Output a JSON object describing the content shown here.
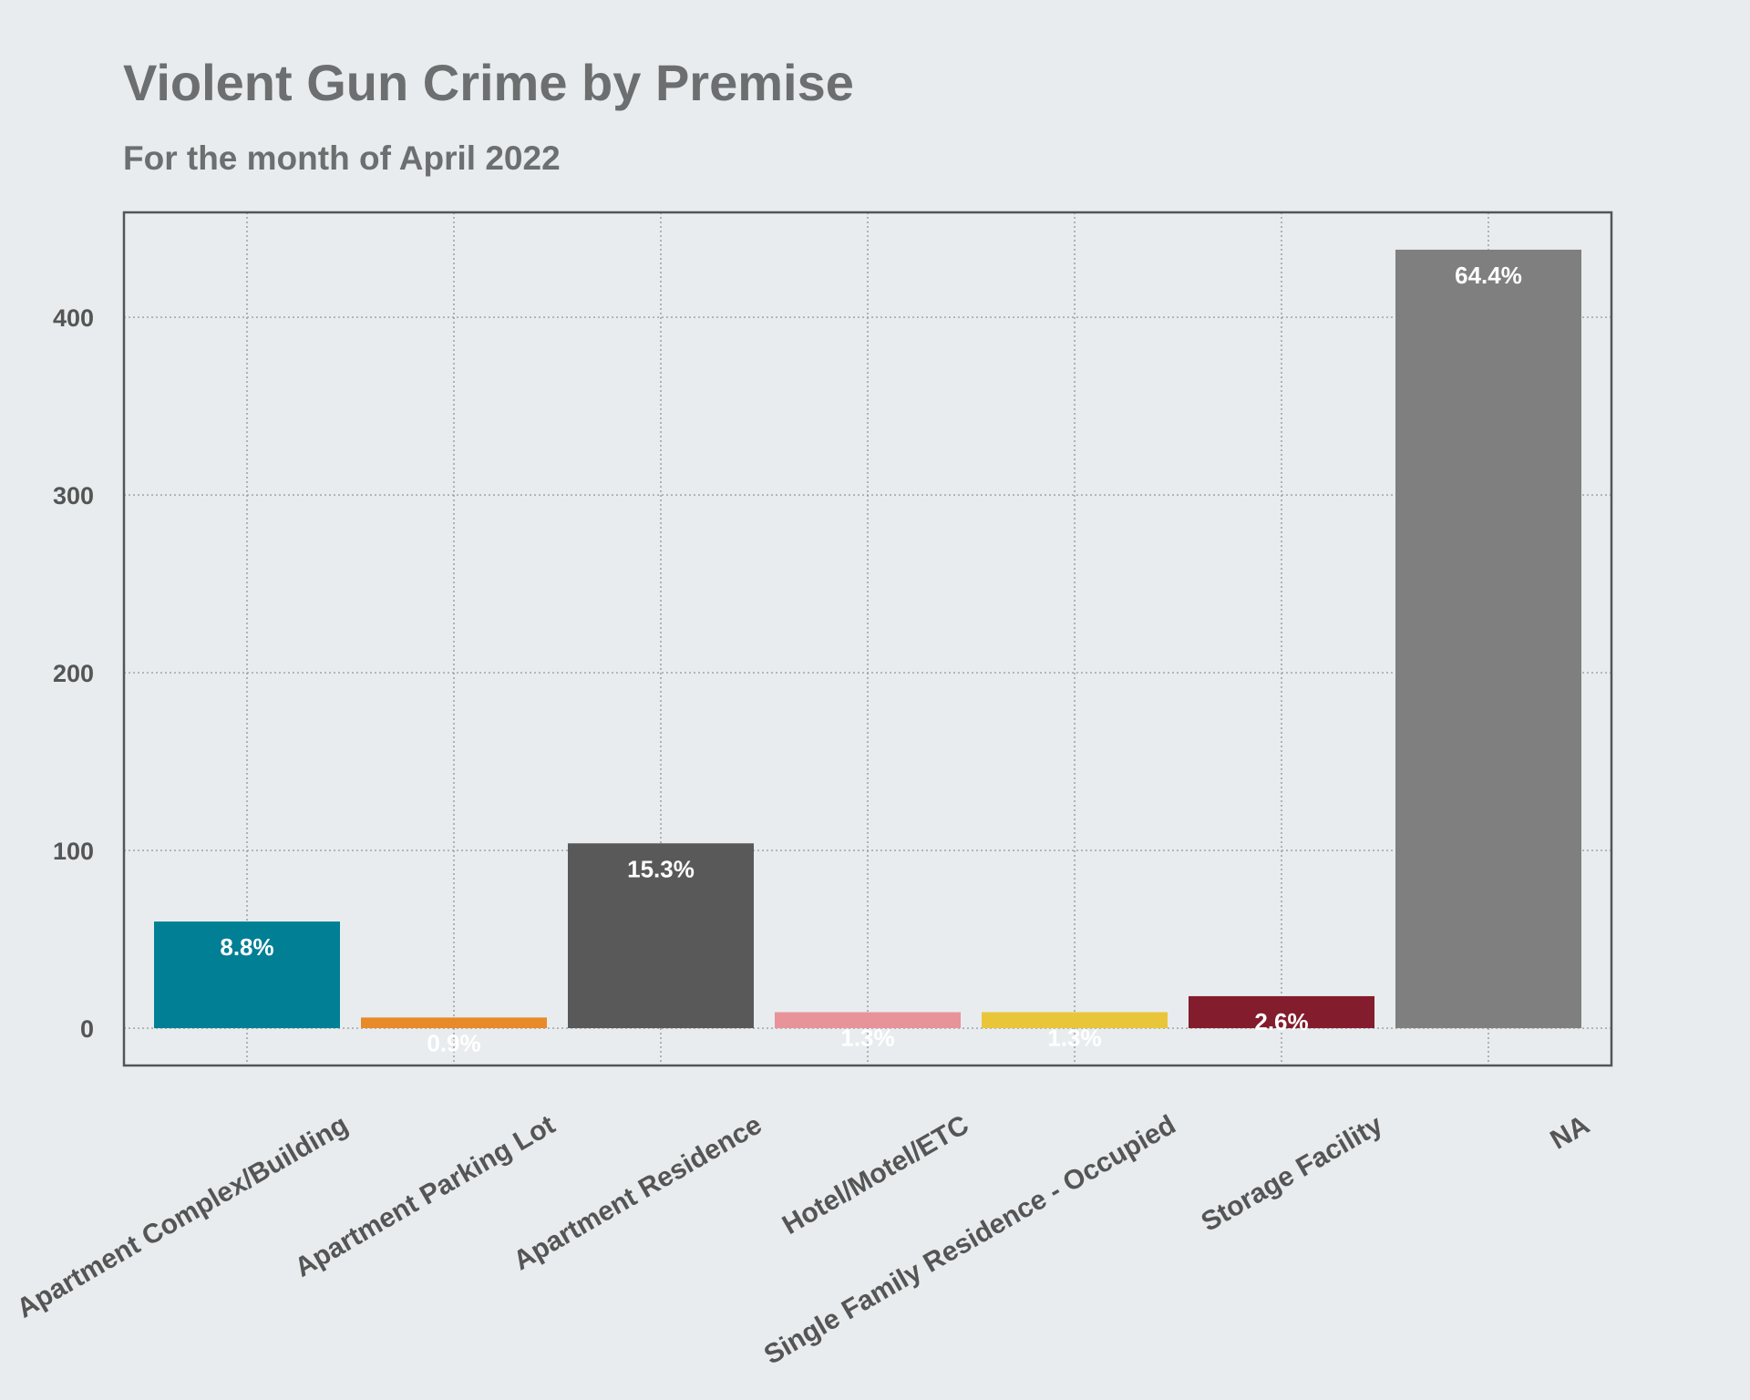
{
  "chart_data": {
    "type": "bar",
    "title": "Violent Gun Crime by Premise",
    "subtitle": "For the month of April 2022",
    "xlabel": "",
    "ylabel": "",
    "categories": [
      "Apartment Complex/Building",
      "Apartment Parking Lot",
      "Apartment Residence",
      "Hotel/Motel/ETC",
      "Single Family Residence - Occupied",
      "Storage Facility",
      "NA"
    ],
    "values": [
      60,
      6,
      104,
      9,
      9,
      18,
      438
    ],
    "labels": [
      "8.8%",
      "0.9%",
      "15.3%",
      "1.3%",
      "1.3%",
      "2.6%",
      "64.4%"
    ],
    "colors": [
      "#007f95",
      "#e8892a",
      "#595959",
      "#e8929a",
      "#e9c53a",
      "#831c2c",
      "#7f7f7f"
    ],
    "ylim": [
      -21,
      459
    ],
    "yticks": [
      0,
      100,
      200,
      300,
      400
    ],
    "grid": true,
    "legend": "none"
  }
}
